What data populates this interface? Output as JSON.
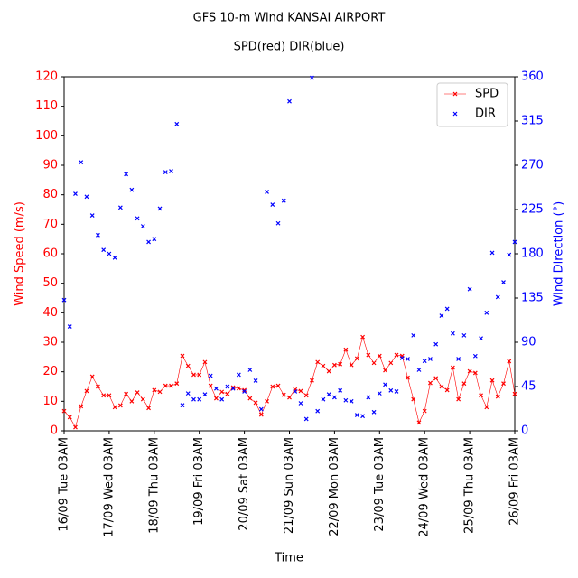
{
  "chart_data": {
    "type": "line",
    "title": "GFS 10-m Wind KANSAI AIRPORT",
    "subtitle": "SPD(red) DIR(blue)",
    "x_label": "Time",
    "y_label": "Wind Speed (m/s)",
    "y2_label": "Wind Direction (°)",
    "categories": [
      "16/09 Tue 03AM",
      null,
      null,
      null,
      null,
      null,
      null,
      null,
      "17/09 Wed 03AM",
      null,
      null,
      null,
      null,
      null,
      null,
      null,
      "18/09 Thu 03AM",
      null,
      null,
      null,
      null,
      null,
      null,
      null,
      "19/09 Fri 03AM",
      null,
      null,
      null,
      null,
      null,
      null,
      null,
      "20/09 Sat 03AM",
      null,
      null,
      null,
      null,
      null,
      null,
      null,
      "21/09 Sun 03AM",
      null,
      null,
      null,
      null,
      null,
      null,
      null,
      "22/09 Mon 03AM",
      null,
      null,
      null,
      null,
      null,
      null,
      null,
      "23/09 Tue 03AM",
      null,
      null,
      null,
      null,
      null,
      null,
      null,
      "24/09 Wed 03AM",
      null,
      null,
      null,
      null,
      null,
      null,
      null,
      "25/09 Thu 03AM",
      null,
      null,
      null,
      null,
      null,
      null,
      null,
      "26/09 Fri 03AM"
    ],
    "series": [
      {
        "name": "SPD",
        "color": "#ff0000",
        "type": "line",
        "axis": "y",
        "values": [
          6.7,
          4.6,
          1.2,
          8.3,
          13.5,
          18.4,
          15,
          12,
          12,
          8,
          8.6,
          12.5,
          10,
          13,
          10.7,
          7.7,
          13.8,
          13.2,
          15.3,
          15.3,
          16,
          25.4,
          22,
          19,
          19,
          23.3,
          15.3,
          11,
          13.2,
          12.5,
          14.7,
          14.4,
          13.8,
          11,
          9.5,
          5.5,
          10,
          15,
          15.3,
          12.2,
          11.3,
          14,
          13.5,
          12,
          17.1,
          23.3,
          22,
          20.2,
          22.3,
          22.6,
          27.5,
          22.3,
          24.5,
          31.8,
          25.7,
          23,
          25.4,
          20.5,
          23,
          25.7,
          25.4,
          18,
          10.7,
          2.8,
          6.7,
          16.2,
          17.8,
          15,
          13.8,
          21.4,
          10.7,
          16,
          20.2,
          19.6,
          12,
          8,
          17.1,
          11.6,
          16,
          23.6,
          12.5
        ]
      },
      {
        "name": "DIR",
        "color": "#0000ff",
        "type": "scatter",
        "axis": "y2",
        "values": [
          133,
          106,
          241,
          273,
          238,
          219,
          199,
          184,
          180,
          176,
          227,
          261,
          245,
          216,
          208,
          192,
          195,
          226,
          263,
          264,
          312,
          26,
          38,
          32,
          32,
          37,
          56,
          43,
          32,
          45,
          43,
          57,
          40,
          62,
          51,
          22,
          243,
          230,
          211,
          234,
          335,
          40,
          28,
          12,
          359,
          20,
          32,
          37,
          34,
          41,
          31,
          30,
          16,
          15,
          34,
          19,
          38,
          47,
          41,
          40,
          74,
          73,
          97,
          62,
          71,
          73,
          88,
          117,
          124,
          99,
          73,
          97,
          144,
          76,
          94,
          120,
          181,
          136,
          151,
          179,
          192
        ]
      }
    ],
    "ylim": [
      0,
      120
    ],
    "yticks": [
      0,
      10,
      20,
      30,
      40,
      50,
      60,
      70,
      80,
      90,
      100,
      110,
      120
    ],
    "y2lim": [
      0,
      360
    ],
    "y2ticks": [
      0,
      45,
      90,
      135,
      180,
      225,
      270,
      315,
      360
    ],
    "legend": "upper right",
    "y_tick_color": "#ff0000",
    "y2_tick_color": "#0000ff"
  }
}
